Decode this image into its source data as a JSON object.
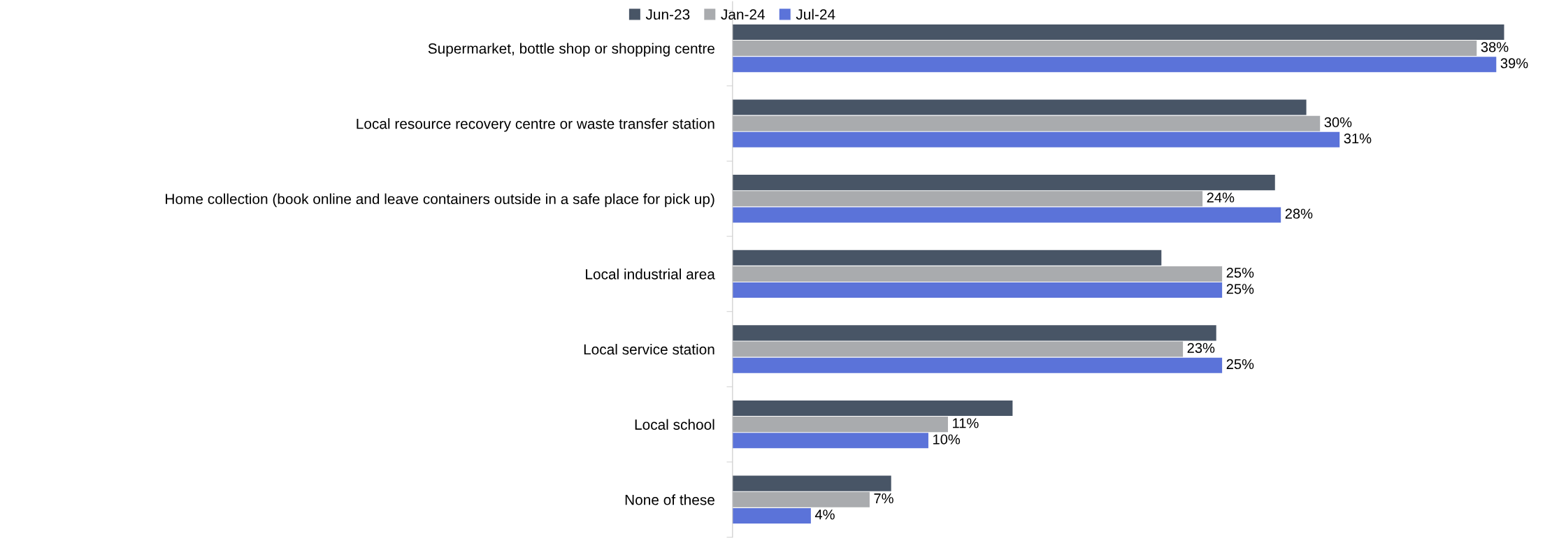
{
  "chart_data": {
    "type": "bar",
    "orientation": "horizontal",
    "legend": "top",
    "categories": [
      "Supermarket, bottle shop or shopping centre",
      "Local resource recovery centre or waste transfer station",
      "Home collection (book online and leave containers outside in a safe place for pick up)",
      "Local industrial area",
      "Local service station",
      "Local school",
      "None of these"
    ],
    "series": [
      {
        "name": "Jun-23",
        "color": "#485566",
        "values": [
          39.4,
          29.3,
          27.7,
          21.9,
          24.7,
          14.3,
          8.1
        ],
        "value_labels": [
          null,
          null,
          null,
          null,
          null,
          null,
          null
        ]
      },
      {
        "name": "Jan-24",
        "color": "#a9abae",
        "values": [
          38,
          30,
          24,
          25,
          23,
          11,
          7
        ],
        "value_labels": [
          "38%",
          "30%",
          "24%",
          "25%",
          "23%",
          "11%",
          "7%"
        ]
      },
      {
        "name": "Jul-24",
        "color": "#5b73d9",
        "values": [
          39,
          31,
          28,
          25,
          25,
          10,
          4
        ],
        "value_labels": [
          "39%",
          "31%",
          "28%",
          "25%",
          "25%",
          "10%",
          "4%"
        ]
      }
    ]
  }
}
